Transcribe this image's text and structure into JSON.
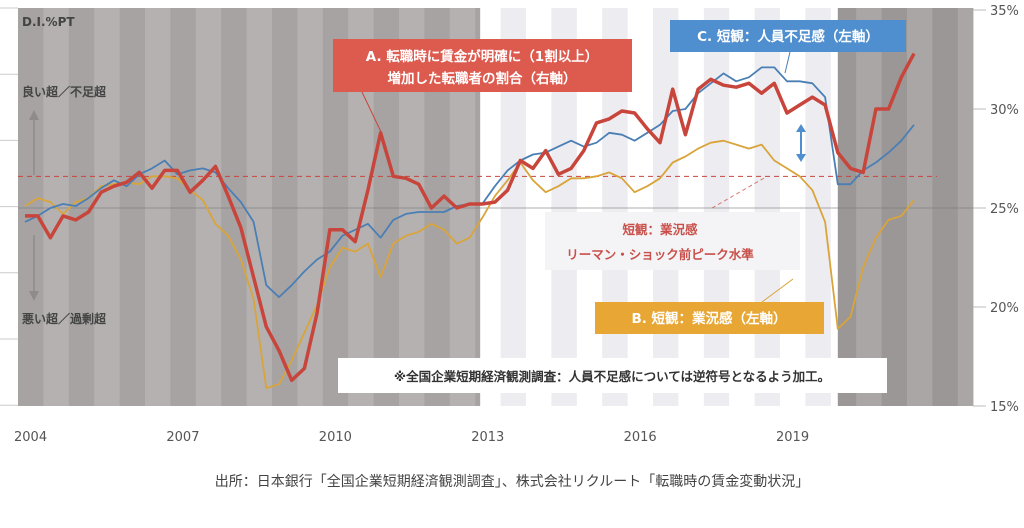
{
  "chart_data": {
    "type": "line",
    "y_axis_unit_label": "D.I.%PT",
    "left_axis_labels": {
      "up": "良い超／不足超",
      "down": "悪い超／過剰超"
    },
    "right_axis": {
      "ticks": [
        "35%",
        "30%",
        "25%",
        "20%",
        "15%"
      ],
      "values": [
        35,
        30,
        25,
        20,
        15
      ],
      "ylim": [
        15,
        35
      ]
    },
    "x_axis": {
      "ticks": [
        "2004",
        "2007",
        "2010",
        "2013",
        "2016",
        "2019"
      ],
      "tick_years": [
        2004,
        2007,
        2010,
        2013,
        2016,
        2019
      ]
    },
    "x_start": "2004Q1",
    "frequency": "quarterly",
    "note_values_scale": "series values expressed on right-axis scale (%)",
    "series": [
      {
        "name": "A. 転職時に賃金が明確に（1割以上）増加した転職者の割合（右軸）",
        "color": "#c8453c",
        "values": [
          24.6,
          24.6,
          23.5,
          24.6,
          24.4,
          24.8,
          25.8,
          26.1,
          26.3,
          26.8,
          26.0,
          26.9,
          26.9,
          25.8,
          26.4,
          27.1,
          25.6,
          24.0,
          21.5,
          19.0,
          17.8,
          16.3,
          16.9,
          19.7,
          23.9,
          23.9,
          23.3,
          25.9,
          28.8,
          26.6,
          26.5,
          26.2,
          25.0,
          25.6,
          25.0,
          25.2,
          25.2,
          25.3,
          25.9,
          27.4,
          27.0,
          27.9,
          26.7,
          27.0,
          27.9,
          29.3,
          29.5,
          29.9,
          29.8,
          29.0,
          28.3,
          31.0,
          28.7,
          31.0,
          31.5,
          31.2,
          31.1,
          31.3,
          30.8,
          31.3,
          29.8,
          30.2,
          30.6,
          30.2,
          27.8,
          27.0,
          26.8,
          30.0,
          30.0,
          31.6,
          32.8
        ]
      },
      {
        "name": "C. 短観：人員不足感（左軸）",
        "color": "#4a7fb5",
        "values": [
          24.3,
          24.6,
          25.0,
          25.2,
          25.1,
          25.5,
          26.0,
          26.4,
          26.1,
          26.7,
          27.0,
          27.4,
          26.7,
          26.9,
          27.0,
          26.8,
          26.0,
          25.3,
          24.3,
          21.1,
          20.5,
          21.1,
          21.8,
          22.4,
          22.8,
          23.6,
          23.9,
          24.2,
          23.5,
          24.4,
          24.7,
          24.8,
          24.8,
          24.8,
          25.1,
          25.2,
          25.2,
          26.1,
          26.9,
          27.4,
          27.7,
          27.8,
          28.1,
          28.4,
          28.1,
          28.3,
          28.8,
          28.7,
          28.4,
          28.8,
          29.2,
          29.9,
          30.0,
          30.8,
          31.3,
          31.8,
          31.4,
          31.6,
          32.1,
          32.1,
          31.4,
          31.4,
          31.3,
          30.6,
          26.2,
          26.2,
          26.9,
          27.3,
          27.8,
          28.4,
          29.2
        ]
      },
      {
        "name": "B. 短観：業況感（左軸）",
        "color": "#d9a43a",
        "values": [
          25.1,
          25.5,
          25.3,
          24.7,
          25.3,
          25.5,
          26.1,
          26.2,
          26.3,
          26.2,
          26.6,
          26.6,
          26.5,
          25.9,
          25.4,
          24.2,
          23.6,
          22.4,
          20.4,
          15.9,
          16.1,
          17.3,
          18.7,
          20.1,
          22.0,
          23.0,
          22.8,
          23.2,
          21.5,
          23.2,
          23.6,
          23.8,
          24.2,
          23.9,
          23.2,
          23.5,
          24.5,
          25.6,
          26.4,
          27.3,
          26.4,
          25.8,
          26.1,
          26.5,
          26.5,
          26.6,
          26.8,
          26.5,
          25.8,
          26.1,
          26.5,
          27.3,
          27.6,
          28.0,
          28.3,
          28.4,
          28.2,
          28.0,
          28.2,
          27.4,
          27.0,
          26.6,
          25.9,
          24.3,
          18.9,
          19.5,
          22.0,
          23.5,
          24.4,
          24.6,
          25.4
        ]
      }
    ],
    "reference_lines": [
      {
        "label": "短観：業況感 リーマン・ショック前ピーク水準",
        "value": 26.6,
        "style": "dashed",
        "color": "#c8453c"
      },
      {
        "label": "zero",
        "value": 25.0,
        "style": "solid",
        "color": "#777777"
      }
    ],
    "shading_periods": [
      {
        "from": 2003.86,
        "to": 2012.96,
        "tone": "gray"
      },
      {
        "from": 2012.96,
        "to": 2020.0,
        "tone": "white"
      },
      {
        "from": 2020.0,
        "to": 2022.66,
        "tone": "dark"
      }
    ],
    "annotations": {
      "a_line1": "A. 転職時に賃金が明確に（1割以上）",
      "a_line2": "増加した転職者の割合（右軸）",
      "b_label": "B. 短観：業況感（左軸）",
      "c_label": "C. 短観：人員不足感（左軸）",
      "peak_line1": "短観：業況感",
      "peak_line2": "リーマン・ショック前ピーク水準",
      "note": "※全国企業短期経済観測調査：人員不足感については逆符号となるよう加工。"
    },
    "source": "出所：日本銀行「全国企業短期経済観測調査」、株式会社リクルート「転職時の賃金変動状況」"
  }
}
